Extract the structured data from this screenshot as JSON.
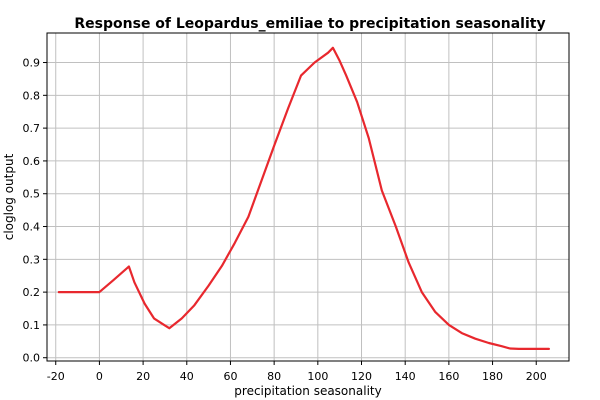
{
  "chart_data": {
    "type": "line",
    "title": "Response of Leopardus_emiliae to precipitation seasonality",
    "xlabel": "precipitation seasonality",
    "ylabel": "cloglog output",
    "xlim": [
      -24,
      215
    ],
    "ylim": [
      -0.01,
      0.99
    ],
    "xticks": [
      -20,
      0,
      20,
      40,
      60,
      80,
      100,
      120,
      140,
      160,
      180,
      200
    ],
    "xtick_labels": [
      "-20",
      "0",
      "20",
      "40",
      "60",
      "80",
      "100",
      "120",
      "140",
      "160",
      "180",
      "200"
    ],
    "yticks": [
      0.0,
      0.1,
      0.2,
      0.3,
      0.4,
      0.5,
      0.6,
      0.7,
      0.8,
      0.9
    ],
    "ytick_labels": [
      "0.0",
      "0.1",
      "0.2",
      "0.3",
      "0.4",
      "0.5",
      "0.6",
      "0.7",
      "0.8",
      "0.9"
    ],
    "grid": true,
    "series": [
      {
        "color": "#e8282e",
        "x": [
          -18.6,
          0,
          6.3,
          13.5,
          16,
          20.7,
          25,
          29.6,
          32,
          37.7,
          43.5,
          50,
          56.1,
          62,
          68.2,
          74.2,
          80.2,
          86.4,
          92.3,
          98.5,
          104.7,
          106.9,
          110,
          113,
          118,
          123.3,
          129.3,
          135.7,
          141.6,
          147.6,
          153.7,
          160,
          165.9,
          172.1,
          178.3,
          184.2,
          188,
          192,
          196.3,
          200,
          205.8
        ],
        "y": [
          0.2,
          0.2,
          0.236,
          0.278,
          0.23,
          0.165,
          0.12,
          0.1,
          0.09,
          0.12,
          0.16,
          0.22,
          0.28,
          0.35,
          0.43,
          0.54,
          0.65,
          0.76,
          0.86,
          0.9,
          0.93,
          0.945,
          0.905,
          0.86,
          0.78,
          0.67,
          0.51,
          0.4,
          0.29,
          0.2,
          0.14,
          0.1,
          0.075,
          0.058,
          0.045,
          0.035,
          0.028,
          0.027,
          0.027,
          0.027,
          0.027
        ]
      }
    ]
  }
}
